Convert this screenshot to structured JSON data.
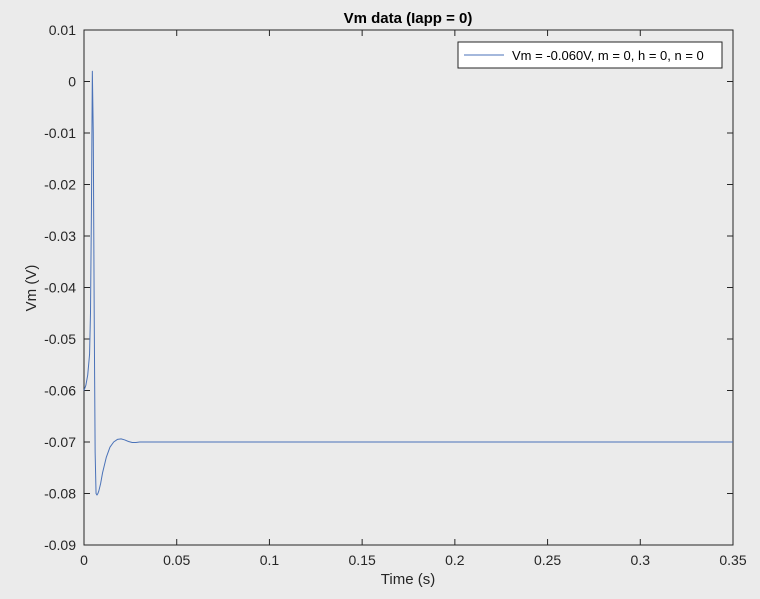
{
  "chart_data": {
    "type": "line",
    "title": "Vm data (Iapp = 0)",
    "xlabel": "Time (s)",
    "ylabel": "Vm (V)",
    "xlim": [
      0,
      0.35
    ],
    "ylim": [
      -0.09,
      0.01
    ],
    "xticks": [
      0,
      0.05,
      0.1,
      0.15,
      0.2,
      0.25,
      0.3,
      0.35
    ],
    "xtick_labels": [
      "0",
      "0.05",
      "0.1",
      "0.15",
      "0.2",
      "0.25",
      "0.3",
      "0.35"
    ],
    "yticks": [
      -0.09,
      -0.08,
      -0.07,
      -0.06,
      -0.05,
      -0.04,
      -0.03,
      -0.02,
      -0.01,
      0,
      0.01
    ],
    "ytick_labels": [
      "-0.09",
      "-0.08",
      "-0.07",
      "-0.06",
      "-0.05",
      "-0.04",
      "-0.03",
      "-0.02",
      "-0.01",
      "0",
      "0.01"
    ],
    "grid": false,
    "legend": {
      "position": "top-right",
      "entries": [
        "Vm = -0.060V, m = 0, h = 0, n = 0"
      ]
    },
    "series": [
      {
        "name": "Vm = -0.060V, m = 0, h = 0, n = 0",
        "color": "#4a72b8",
        "x": [
          0,
          0.001,
          0.002,
          0.003,
          0.0035,
          0.004,
          0.0045,
          0.005,
          0.0055,
          0.006,
          0.0065,
          0.007,
          0.0075,
          0.008,
          0.009,
          0.01,
          0.012,
          0.014,
          0.016,
          0.018,
          0.02,
          0.022,
          0.024,
          0.026,
          0.028,
          0.03,
          0.035,
          0.04,
          0.05,
          0.1,
          0.15,
          0.2,
          0.25,
          0.3,
          0.35
        ],
        "y": [
          -0.06,
          -0.059,
          -0.057,
          -0.053,
          -0.045,
          -0.025,
          0.002,
          -0.01,
          -0.045,
          -0.072,
          -0.08,
          -0.0803,
          -0.08,
          -0.0795,
          -0.078,
          -0.076,
          -0.073,
          -0.071,
          -0.07,
          -0.0695,
          -0.0694,
          -0.0696,
          -0.0699,
          -0.0701,
          -0.0701,
          -0.07,
          -0.07,
          -0.07,
          -0.07,
          -0.07,
          -0.07,
          -0.07,
          -0.07,
          -0.07,
          -0.07
        ]
      }
    ]
  }
}
